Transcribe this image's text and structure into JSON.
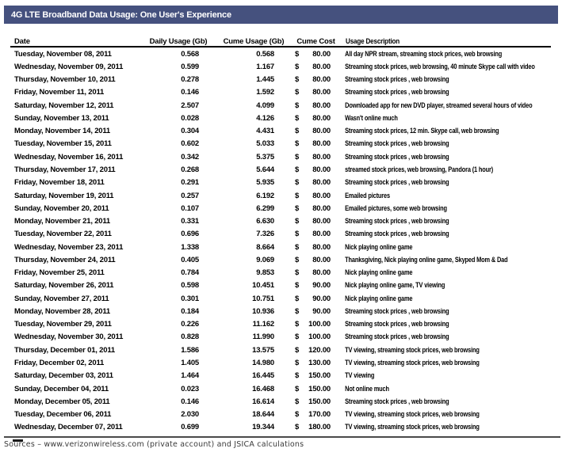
{
  "title_bar": {
    "title": "4G LTE Broadband Data Usage: One User's Experience"
  },
  "chart_data": {
    "type": "table",
    "title": "4G LTE Broadband Data Usage: One User's Experience",
    "columns": [
      "Date",
      "Daily Usage (Gb)",
      "Cume Usage (Gb)",
      "Cume Cost",
      "Usage Description"
    ],
    "currency_symbol": "$",
    "rows": [
      {
        "date": "Tuesday, November 08, 2011",
        "daily": "0.568",
        "cume": "0.568",
        "cost": "80.00",
        "desc": "All day NPR stream, streaming stock prices, web browsing"
      },
      {
        "date": "Wednesday, November 09, 2011",
        "daily": "0.599",
        "cume": "1.167",
        "cost": "80.00",
        "desc": "Streaming stock prices, web browsing, 40 minute Skype call with video"
      },
      {
        "date": "Thursday, November 10, 2011",
        "daily": "0.278",
        "cume": "1.445",
        "cost": "80.00",
        "desc": "Streaming stock prices , web browsing"
      },
      {
        "date": "Friday, November 11, 2011",
        "daily": "0.146",
        "cume": "1.592",
        "cost": "80.00",
        "desc": "Streaming stock prices , web browsing"
      },
      {
        "date": "Saturday, November 12, 2011",
        "daily": "2.507",
        "cume": "4.099",
        "cost": "80.00",
        "desc": "Downloaded app for new DVD player, streamed several hours of video"
      },
      {
        "date": "Sunday, November 13, 2011",
        "daily": "0.028",
        "cume": "4.126",
        "cost": "80.00",
        "desc": "Wasn't online much"
      },
      {
        "date": "Monday, November 14, 2011",
        "daily": "0.304",
        "cume": "4.431",
        "cost": "80.00",
        "desc": "Streaming stock prices, 12 min. Skype call, web browsing"
      },
      {
        "date": "Tuesday, November 15, 2011",
        "daily": "0.602",
        "cume": "5.033",
        "cost": "80.00",
        "desc": "Streaming stock prices , web browsing"
      },
      {
        "date": "Wednesday, November 16, 2011",
        "daily": "0.342",
        "cume": "5.375",
        "cost": "80.00",
        "desc": "Streaming stock prices , web browsing"
      },
      {
        "date": "Thursday, November 17, 2011",
        "daily": "0.268",
        "cume": "5.644",
        "cost": "80.00",
        "desc": "streamed stock prices, web browsing, Pandora (1 hour)"
      },
      {
        "date": "Friday, November 18, 2011",
        "daily": "0.291",
        "cume": "5.935",
        "cost": "80.00",
        "desc": "Streaming stock prices , web browsing"
      },
      {
        "date": "Saturday, November 19, 2011",
        "daily": "0.257",
        "cume": "6.192",
        "cost": "80.00",
        "desc": "Emailed pictures"
      },
      {
        "date": "Sunday, November 20, 2011",
        "daily": "0.107",
        "cume": "6.299",
        "cost": "80.00",
        "desc": "Emailed pictures, some web browsing"
      },
      {
        "date": "Monday, November 21, 2011",
        "daily": "0.331",
        "cume": "6.630",
        "cost": "80.00",
        "desc": "Streaming stock prices , web browsing"
      },
      {
        "date": "Tuesday, November 22, 2011",
        "daily": "0.696",
        "cume": "7.326",
        "cost": "80.00",
        "desc": "Streaming stock prices , web browsing"
      },
      {
        "date": "Wednesday, November 23, 2011",
        "daily": "1.338",
        "cume": "8.664",
        "cost": "80.00",
        "desc": "Nick playing online game"
      },
      {
        "date": "Thursday, November 24, 2011",
        "daily": "0.405",
        "cume": "9.069",
        "cost": "80.00",
        "desc": "Thanksgiving, Nick playing online game, Skyped Mom & Dad"
      },
      {
        "date": "Friday, November 25, 2011",
        "daily": "0.784",
        "cume": "9.853",
        "cost": "80.00",
        "desc": "Nick playing online game"
      },
      {
        "date": "Saturday, November 26, 2011",
        "daily": "0.598",
        "cume": "10.451",
        "cost": "90.00",
        "desc": "Nick playing online game, TV viewing"
      },
      {
        "date": "Sunday, November 27, 2011",
        "daily": "0.301",
        "cume": "10.751",
        "cost": "90.00",
        "desc": "Nick playing online game"
      },
      {
        "date": "Monday, November 28, 2011",
        "daily": "0.184",
        "cume": "10.936",
        "cost": "90.00",
        "desc": "Streaming stock prices , web browsing"
      },
      {
        "date": "Tuesday, November 29, 2011",
        "daily": "0.226",
        "cume": "11.162",
        "cost": "100.00",
        "desc": "Streaming stock prices , web browsing"
      },
      {
        "date": "Wednesday, November 30, 2011",
        "daily": "0.828",
        "cume": "11.990",
        "cost": "100.00",
        "desc": "Streaming stock prices , web browsing"
      },
      {
        "date": "Thursday, December 01, 2011",
        "daily": "1.586",
        "cume": "13.575",
        "cost": "120.00",
        "desc": "TV viewing, streaming stock prices, web browsing"
      },
      {
        "date": "Friday, December 02, 2011",
        "daily": "1.405",
        "cume": "14.980",
        "cost": "130.00",
        "desc": "TV viewing, streaming stock prices, web browsing"
      },
      {
        "date": "Saturday, December 03, 2011",
        "daily": "1.464",
        "cume": "16.445",
        "cost": "150.00",
        "desc": "TV viewing"
      },
      {
        "date": "Sunday, December 04, 2011",
        "daily": "0.023",
        "cume": "16.468",
        "cost": "150.00",
        "desc": "Not online much"
      },
      {
        "date": "Monday, December 05, 2011",
        "daily": "0.146",
        "cume": "16.614",
        "cost": "150.00",
        "desc": "Streaming stock prices , web browsing"
      },
      {
        "date": "Tuesday, December 06, 2011",
        "daily": "2.030",
        "cume": "18.644",
        "cost": "170.00",
        "desc": "TV viewing, streaming stock prices, web browsing"
      },
      {
        "date": "Wednesday, December 07, 2011",
        "daily": "0.699",
        "cume": "19.344",
        "cost": "180.00",
        "desc": "TV viewing, streaming stock prices, web browsing"
      }
    ]
  },
  "footer": {
    "source_line": "Sources – www.verizonwireless.com (private account) and JSICA calculations"
  },
  "colors": {
    "title_bar_bg": "#45517E",
    "title_text": "#FFFFFF",
    "table_text": "#000000",
    "header_rule": "#000000",
    "bottom_rule": "#4A4A4A",
    "footer_text": "#3A3A3A"
  }
}
